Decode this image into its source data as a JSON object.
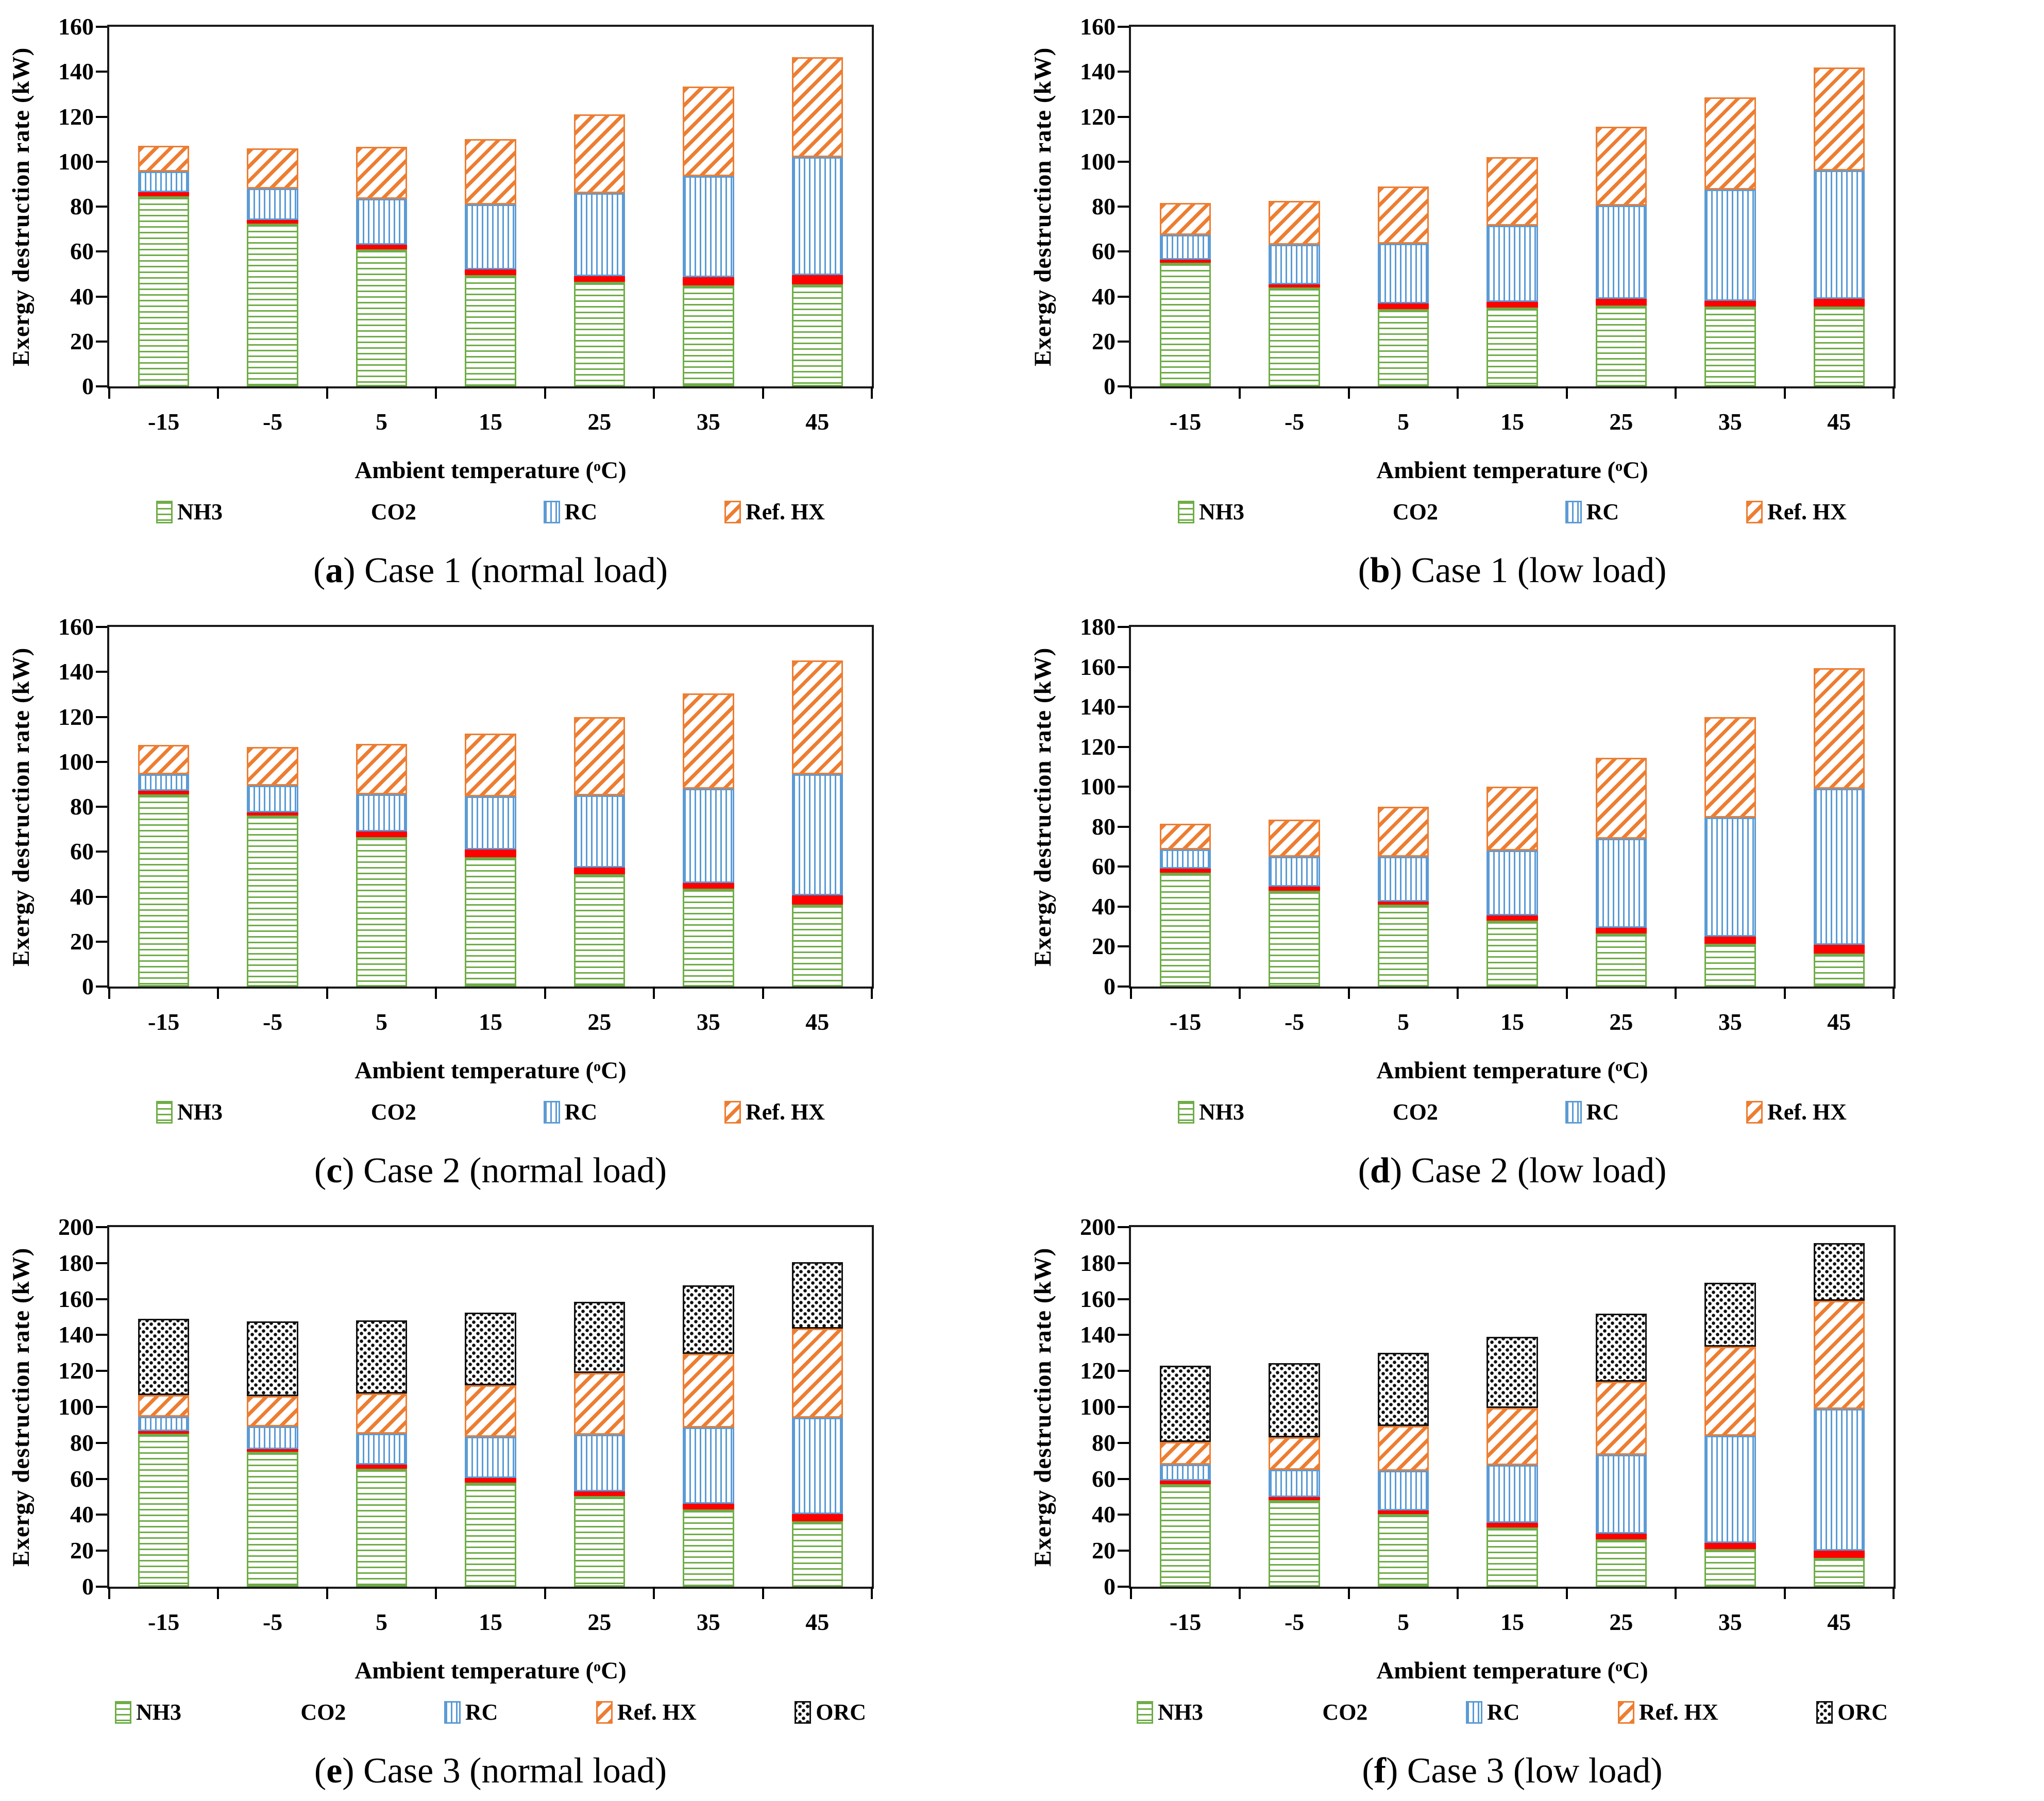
{
  "figure": {
    "x_axis": {
      "label_pre": "Ambient temperature (",
      "label_sup": "o",
      "label_post": "C)"
    },
    "y_axis": {
      "label": "Exergy destruction rate (kW)"
    },
    "caption_open": "(",
    "caption_close": ") ",
    "colors": {
      "NH3": "#6fad47",
      "CO2": "#ff0000",
      "RC": "#5b9bd5",
      "Ref. HX": "#ed7d31",
      "ORC": "#111111",
      "axis": "#1a1a1a"
    }
  },
  "chart_data": [
    {
      "type": "bar",
      "stacked": true,
      "panel": "a",
      "title": "Case 1 (normal load)",
      "xlabel": "Ambient temperature (oC)",
      "ylabel": "Exergy destruction rate (kW)",
      "ylim": [
        0,
        160
      ],
      "ytick_step": 20,
      "yticks": [
        "0",
        "20",
        "40",
        "60",
        "80",
        "100",
        "120",
        "140",
        "160"
      ],
      "categories": [
        "-15",
        "-5",
        "5",
        "15",
        "25",
        "35",
        "45"
      ],
      "legend_position": "bottom",
      "grid": false,
      "series": [
        {
          "name": "NH3",
          "values": [
            84.5,
            72.5,
            61,
            49.5,
            46.5,
            45,
            45.5
          ]
        },
        {
          "name": "CO2",
          "values": [
            2,
            1.5,
            2,
            2.5,
            2.5,
            3.5,
            4
          ]
        },
        {
          "name": "RC",
          "values": [
            9,
            14,
            20.5,
            29,
            37,
            45,
            52.5
          ]
        },
        {
          "name": "Ref. HX",
          "values": [
            11.5,
            18,
            23,
            29,
            35,
            40,
            44.5
          ]
        }
      ]
    },
    {
      "type": "bar",
      "stacked": true,
      "panel": "b",
      "title": "Case 1 (low load)",
      "xlabel": "Ambient temperature (oC)",
      "ylabel": "Exergy destruction rate (kW)",
      "ylim": [
        0,
        160
      ],
      "ytick_step": 20,
      "yticks": [
        "0",
        "20",
        "40",
        "60",
        "80",
        "100",
        "120",
        "140",
        "160"
      ],
      "categories": [
        "-15",
        "-5",
        "5",
        "15",
        "25",
        "35",
        "45"
      ],
      "legend_position": "bottom",
      "grid": false,
      "series": [
        {
          "name": "NH3",
          "values": [
            55,
            44,
            34.5,
            35,
            36,
            35.5,
            35.5
          ]
        },
        {
          "name": "CO2",
          "values": [
            1.5,
            1.5,
            2.5,
            2.5,
            3,
            2.5,
            3.5
          ]
        },
        {
          "name": "RC",
          "values": [
            11,
            17.5,
            26.5,
            34,
            41.5,
            49.5,
            57
          ]
        },
        {
          "name": "Ref. HX",
          "values": [
            14,
            19.5,
            25.5,
            30.5,
            35,
            41,
            46
          ]
        }
      ]
    },
    {
      "type": "bar",
      "stacked": true,
      "panel": "c",
      "title": "Case 2 (normal load)",
      "xlabel": "Ambient temperature (oC)",
      "ylabel": "Exergy destruction rate (kW)",
      "ylim": [
        0,
        160
      ],
      "ytick_step": 20,
      "yticks": [
        "0",
        "20",
        "40",
        "60",
        "80",
        "100",
        "120",
        "140",
        "160"
      ],
      "categories": [
        "-15",
        "-5",
        "5",
        "15",
        "25",
        "35",
        "45"
      ],
      "legend_position": "bottom",
      "grid": false,
      "series": [
        {
          "name": "NH3",
          "values": [
            85.5,
            76,
            66.5,
            57.5,
            50,
            43.5,
            36.5
          ]
        },
        {
          "name": "CO2",
          "values": [
            1.5,
            1.5,
            2.5,
            3.5,
            3,
            2.5,
            4
          ]
        },
        {
          "name": "RC",
          "values": [
            7.5,
            12,
            16.5,
            23.5,
            32,
            42,
            54
          ]
        },
        {
          "name": "Ref. HX",
          "values": [
            13,
            17,
            22.5,
            28,
            35,
            42.5,
            50.5
          ]
        }
      ]
    },
    {
      "type": "bar",
      "stacked": true,
      "panel": "d",
      "title": "Case 2 (low load)",
      "xlabel": "Ambient temperature (oC)",
      "ylabel": "Exergy destruction rate (kW)",
      "ylim": [
        0,
        180
      ],
      "ytick_step": 20,
      "yticks": [
        "0",
        "20",
        "40",
        "60",
        "80",
        "100",
        "120",
        "140",
        "160",
        "180"
      ],
      "categories": [
        "-15",
        "-5",
        "5",
        "15",
        "25",
        "35",
        "45"
      ],
      "legend_position": "bottom",
      "grid": false,
      "series": [
        {
          "name": "NH3",
          "values": [
            57,
            48,
            41,
            33,
            26.5,
            21.5,
            16.5
          ]
        },
        {
          "name": "CO2",
          "values": [
            2,
            2,
            1.5,
            2.5,
            3,
            3.5,
            4.5
          ]
        },
        {
          "name": "RC",
          "values": [
            9.5,
            15,
            22.5,
            32.5,
            44.5,
            59.5,
            78
          ]
        },
        {
          "name": "Ref. HX",
          "values": [
            13,
            18.5,
            25,
            32,
            40.5,
            50.5,
            60.5
          ]
        }
      ]
    },
    {
      "type": "bar",
      "stacked": true,
      "panel": "e",
      "title": "Case 3 (normal load)",
      "xlabel": "Ambient temperature (oC)",
      "ylabel": "Exergy destruction rate (kW)",
      "ylim": [
        0,
        200
      ],
      "ytick_step": 20,
      "yticks": [
        "0",
        "20",
        "40",
        "60",
        "80",
        "100",
        "120",
        "140",
        "160",
        "180",
        "200"
      ],
      "categories": [
        "-15",
        "-5",
        "5",
        "15",
        "25",
        "35",
        "45"
      ],
      "legend_position": "bottom",
      "grid": false,
      "series": [
        {
          "name": "NH3",
          "values": [
            85,
            75,
            65.5,
            58,
            50.5,
            43,
            36.5
          ]
        },
        {
          "name": "CO2",
          "values": [
            1.5,
            1.5,
            2.5,
            2.5,
            2.5,
            3,
            4
          ]
        },
        {
          "name": "RC",
          "values": [
            8,
            12.5,
            17,
            23,
            31.5,
            42.5,
            53.5
          ]
        },
        {
          "name": "Ref. HX",
          "values": [
            12,
            17,
            22.5,
            28.5,
            34.5,
            41,
            49.5
          ]
        },
        {
          "name": "ORC",
          "values": [
            42.5,
            41.5,
            40.5,
            40.5,
            39.5,
            38,
            37
          ]
        }
      ]
    },
    {
      "type": "bar",
      "stacked": true,
      "panel": "f",
      "title": "Case 3 (low load)",
      "xlabel": "Ambient temperature (oC)",
      "ylabel": "Exergy destruction rate (kW)",
      "ylim": [
        0,
        200
      ],
      "ytick_step": 20,
      "yticks": [
        "0",
        "20",
        "40",
        "60",
        "80",
        "100",
        "120",
        "140",
        "160",
        "180",
        "200"
      ],
      "categories": [
        "-15",
        "-5",
        "5",
        "15",
        "25",
        "35",
        "45"
      ],
      "legend_position": "bottom",
      "grid": false,
      "series": [
        {
          "name": "NH3",
          "values": [
            57,
            48,
            40.5,
            33,
            26.5,
            21,
            16
          ]
        },
        {
          "name": "CO2",
          "values": [
            2,
            2,
            2,
            2.5,
            3,
            3.5,
            4
          ]
        },
        {
          "name": "RC",
          "values": [
            9,
            15,
            22,
            32,
            44,
            59.5,
            79
          ]
        },
        {
          "name": "Ref. HX",
          "values": [
            12.5,
            18,
            25,
            32,
            40.5,
            49.5,
            60
          ]
        },
        {
          "name": "ORC",
          "values": [
            42.5,
            41.5,
            40.5,
            39.5,
            38,
            35.5,
            32
          ]
        }
      ]
    }
  ]
}
